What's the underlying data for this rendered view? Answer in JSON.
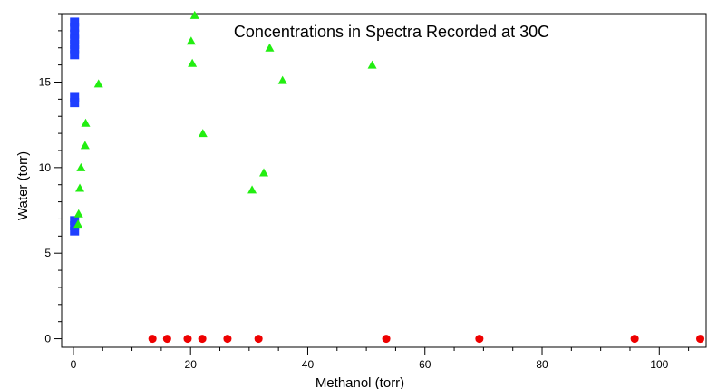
{
  "chart_data": {
    "type": "scatter",
    "title": "Concentrations in Spectra Recorded at 30C",
    "xlabel": "Methanol (torr)",
    "ylabel": "Water (torr)",
    "xlim": [
      -2,
      108
    ],
    "ylim": [
      -0.5,
      19
    ],
    "xticks": [
      0,
      20,
      40,
      60,
      80,
      100
    ],
    "yticks": [
      0,
      5,
      10,
      15
    ],
    "grid": false,
    "legend": "none",
    "series": [
      {
        "marker": "square",
        "color": "#1f3fff",
        "points": [
          [
            0.2,
            18.5
          ],
          [
            0.2,
            18.2
          ],
          [
            0.2,
            17.8
          ],
          [
            0.2,
            17.5
          ],
          [
            0.2,
            17.2
          ],
          [
            0.2,
            16.9
          ],
          [
            0.2,
            16.6
          ],
          [
            0.2,
            14.1
          ],
          [
            0.2,
            13.8
          ],
          [
            0.2,
            6.9
          ],
          [
            0.2,
            6.6
          ],
          [
            0.2,
            6.3
          ]
        ]
      },
      {
        "marker": "triangle",
        "color": "#22ee11",
        "points": [
          [
            0.8,
            6.7
          ],
          [
            0.9,
            7.3
          ],
          [
            1.1,
            8.8
          ],
          [
            1.3,
            10.0
          ],
          [
            2.0,
            11.3
          ],
          [
            2.1,
            12.6
          ],
          [
            4.3,
            14.9
          ],
          [
            20.1,
            17.4
          ],
          [
            20.3,
            16.1
          ],
          [
            20.7,
            18.9
          ],
          [
            22.1,
            12.0
          ],
          [
            30.5,
            8.7
          ],
          [
            32.5,
            9.7
          ],
          [
            33.5,
            17.0
          ],
          [
            35.7,
            15.1
          ],
          [
            51.0,
            16.0
          ]
        ]
      },
      {
        "marker": "circle",
        "color": "#ee0000",
        "points": [
          [
            13.5,
            0
          ],
          [
            16.0,
            0
          ],
          [
            19.5,
            0
          ],
          [
            22.0,
            0
          ],
          [
            26.3,
            0
          ],
          [
            31.6,
            0
          ],
          [
            53.4,
            0
          ],
          [
            69.3,
            0
          ],
          [
            95.8,
            0
          ],
          [
            107.0,
            0
          ]
        ]
      }
    ]
  }
}
